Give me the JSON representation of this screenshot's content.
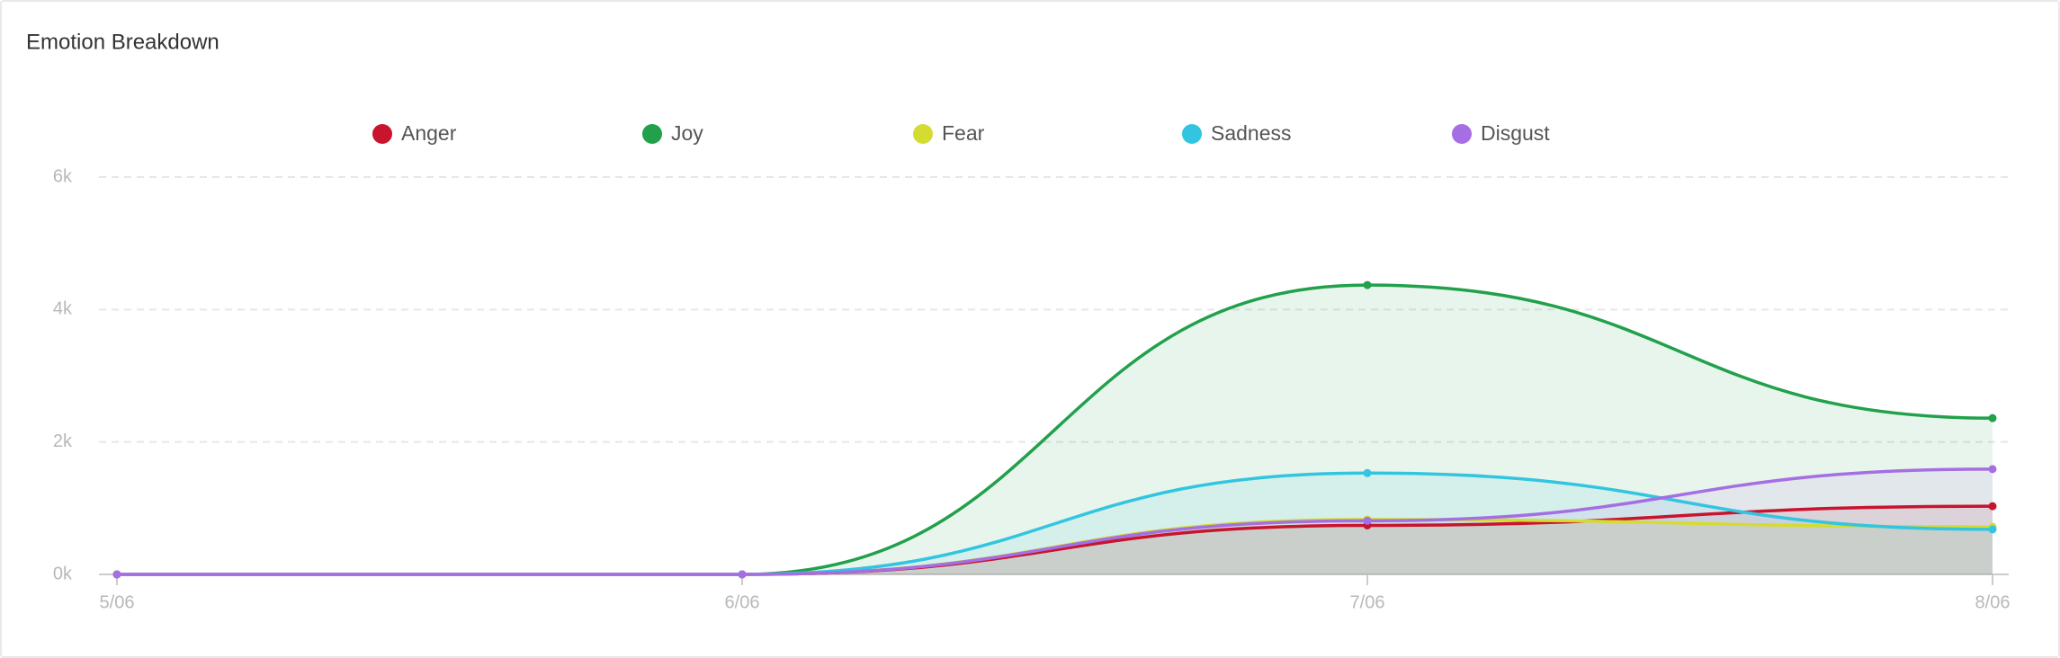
{
  "chart_data": {
    "type": "area",
    "title": "Emotion Breakdown",
    "categories": [
      "5/06",
      "6/06",
      "7/06",
      "8/06"
    ],
    "series": [
      {
        "name": "Anger",
        "color": "#c8142d",
        "values": [
          0,
          0,
          740,
          1030
        ]
      },
      {
        "name": "Joy",
        "color": "#22a04b",
        "values": [
          0,
          0,
          4370,
          2360
        ]
      },
      {
        "name": "Fear",
        "color": "#d4dc32",
        "values": [
          0,
          0,
          830,
          720
        ]
      },
      {
        "name": "Sadness",
        "color": "#33c5df",
        "values": [
          0,
          0,
          1530,
          680
        ]
      },
      {
        "name": "Disgust",
        "color": "#a56ee3",
        "values": [
          0,
          0,
          810,
          1590
        ]
      }
    ],
    "ylim": [
      0,
      6000
    ],
    "yticks": [
      {
        "value": 0,
        "label": "0k"
      },
      {
        "value": 2000,
        "label": "2k"
      },
      {
        "value": 4000,
        "label": "4k"
      },
      {
        "value": 6000,
        "label": "6k"
      }
    ],
    "grid": true,
    "legend": "top"
  }
}
